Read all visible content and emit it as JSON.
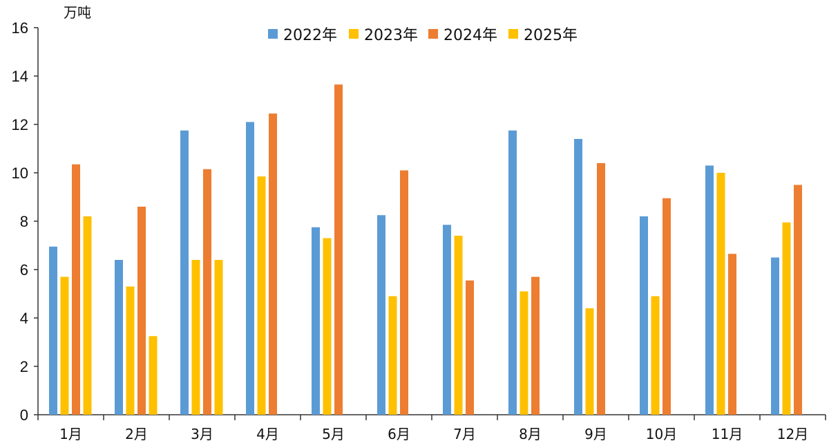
{
  "chart_data": {
    "type": "bar",
    "ylabel": "万吨",
    "ylim": [
      0,
      16
    ],
    "yticks": [
      0,
      2,
      4,
      6,
      8,
      10,
      12,
      14,
      16
    ],
    "grid": false,
    "legend_position": "top-center",
    "categories": [
      "1月",
      "2月",
      "3月",
      "4月",
      "5月",
      "6月",
      "7月",
      "8月",
      "9月",
      "10月",
      "11月",
      "12月"
    ],
    "series": [
      {
        "name": "2022年",
        "color": "#5B9BD5",
        "values": [
          6.95,
          6.4,
          11.75,
          12.1,
          7.75,
          8.25,
          7.85,
          11.75,
          11.4,
          8.2,
          10.3,
          6.5
        ]
      },
      {
        "name": "2023年",
        "color": "#FFC000",
        "values": [
          5.7,
          5.3,
          6.4,
          9.85,
          7.3,
          4.9,
          7.4,
          5.1,
          4.4,
          4.9,
          10.0,
          7.95
        ]
      },
      {
        "name": "2024年",
        "color": "#ED7D31",
        "values": [
          10.35,
          8.6,
          10.15,
          12.45,
          13.65,
          10.1,
          5.55,
          5.7,
          10.4,
          8.95,
          6.65,
          9.5
        ]
      },
      {
        "name": "2025年",
        "color": "#FFC000",
        "values": [
          8.2,
          3.25,
          6.4,
          null,
          null,
          null,
          null,
          null,
          null,
          null,
          null,
          null
        ]
      }
    ]
  }
}
